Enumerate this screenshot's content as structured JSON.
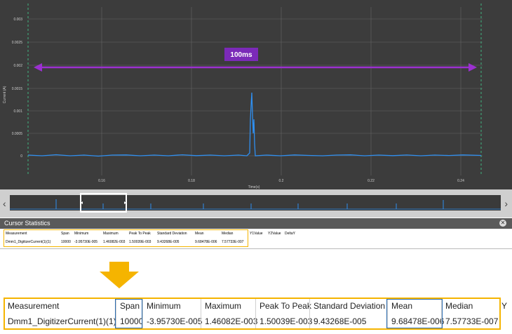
{
  "plot": {
    "y_axis_label": "Current (A)",
    "x_axis_label": "Time(s)",
    "y_ticks": [
      "0.003",
      "0.0025",
      "0.002",
      "0.0015",
      "0.001",
      "0.0005",
      "0"
    ],
    "x_ticks": [
      "0.16",
      "0.18",
      "0.2",
      "0.22",
      "0.24"
    ],
    "span_label": "100ms",
    "colors": {
      "background": "#3c3c3c",
      "trace": "#2f8ff0",
      "span_arrow": "#9b30d0",
      "cursor": "#3fb37f"
    }
  },
  "overview": {
    "left_arrow": "‹",
    "right_arrow": "›"
  },
  "stats": {
    "header": "Cursor Statistics",
    "close_icon": "close-icon",
    "columns": [
      "Measurement",
      "Span",
      "Minimum",
      "Maximum",
      "Peak To Peak",
      "Standard Deviation",
      "Mean",
      "Median",
      "Y1Value",
      "Y2Value",
      "DeltaY"
    ],
    "row": [
      "Dmm1_DigitizerCurrent(1)(1)",
      "10000",
      "-3.95730E-005",
      "1.46082E-003",
      "1.50039E-003",
      "9.43268E-005",
      "9.68478E-006",
      "7.57733E-007",
      "",
      "",
      ""
    ]
  },
  "zoom": {
    "columns": [
      "Measurement",
      "Span",
      "Minimum",
      "Maximum",
      "Peak To Peak",
      "Standard Deviation",
      "Mean",
      "Median",
      "Y"
    ],
    "row": [
      "Dmm1_DigitizerCurrent(1)(1)",
      "10000",
      "-3.95730E-005",
      "1.46082E-003",
      "1.50039E-003",
      "9.43268E-005",
      "9.68478E-006",
      "7.57733E-007"
    ]
  },
  "colors": {
    "highlight": "#f5b400",
    "focus": "#2b6cb0",
    "arrow": "#f5b400"
  }
}
